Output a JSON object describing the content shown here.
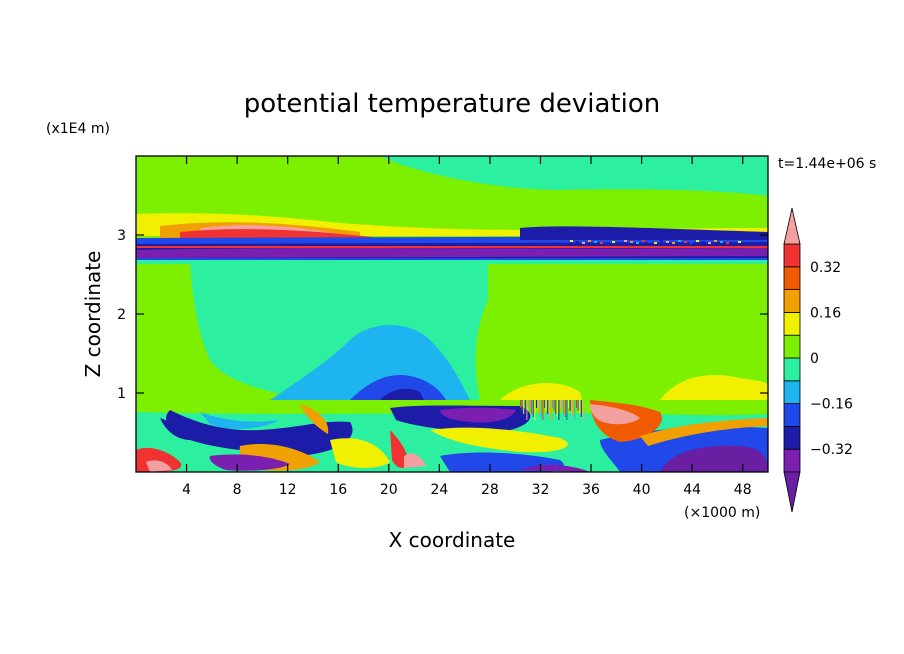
{
  "chart_data": {
    "type": "heatmap",
    "title": "potential temperature deviation",
    "time_label": "t=1.44e+06 s",
    "xlabel": "X coordinate",
    "ylabel": "Z coordinate",
    "x_unit": "(×1000 m)",
    "y_unit": "(x1E4 m)",
    "xlim": [
      0,
      50
    ],
    "ylim": [
      0,
      4
    ],
    "x_ticks": [
      4,
      8,
      12,
      16,
      20,
      24,
      28,
      32,
      36,
      40,
      44,
      48
    ],
    "y_ticks": [
      1,
      2,
      3
    ],
    "colorbar": {
      "levels": [
        -0.4,
        -0.32,
        -0.24,
        -0.16,
        -0.08,
        0,
        0.08,
        0.16,
        0.24,
        0.32,
        0.4
      ],
      "tick_values": [
        0.32,
        0.16,
        0,
        -0.16,
        -0.32
      ],
      "tick_labels": [
        "0.32",
        "0.16",
        "0",
        "−0.16",
        "−0.32"
      ],
      "colors": {
        "below": "#6a1fa3",
        "n5": "#7b1fb0",
        "n4": "#1c1ca8",
        "n3": "#2148e8",
        "n2": "#1eb4f0",
        "n1": "#2cf0a0",
        "p1": "#7cf000",
        "p2": "#f0f000",
        "p3": "#f0a000",
        "p4": "#f05a00",
        "p5": "#f03232",
        "above": "#f5a0a0"
      }
    },
    "field_bands": [
      {
        "z": [
          0,
          0.95
        ],
        "description": "turbulent boundary layer with mixed anomalies"
      },
      {
        "z": [
          0.95,
          2.65
        ],
        "description": "mostly near-zero field with a cool plume near x=14-28"
      },
      {
        "z": [
          2.65,
          3.35
        ],
        "description": "strong layered anomalies (warm above, cold below)"
      },
      {
        "z": [
          3.35,
          4.0
        ],
        "description": "weak positive / near-zero field"
      }
    ]
  }
}
